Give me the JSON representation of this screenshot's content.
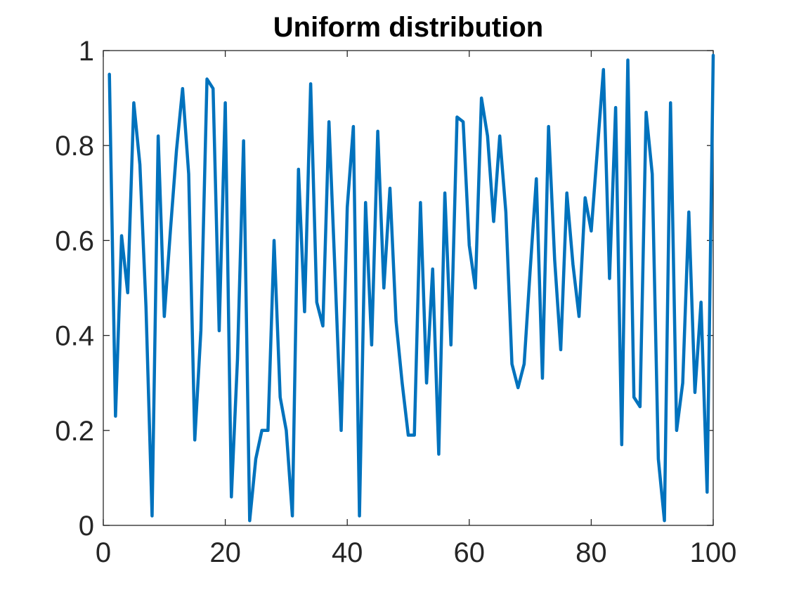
{
  "chart_data": {
    "type": "line",
    "title": "Uniform distribution",
    "xlabel": "",
    "ylabel": "",
    "xlim": [
      0,
      100
    ],
    "ylim": [
      0,
      1
    ],
    "xticks": [
      0,
      20,
      40,
      60,
      80,
      100
    ],
    "yticks": [
      0,
      0.2,
      0.4,
      0.6,
      0.8,
      1
    ],
    "xtick_labels": [
      "0",
      "20",
      "40",
      "60",
      "80",
      "100"
    ],
    "ytick_labels": [
      "0",
      "0.2",
      "0.4",
      "0.6",
      "0.8",
      "1"
    ],
    "grid": false,
    "box": true,
    "series": [
      {
        "color": "#0072bd",
        "x": [
          1,
          2,
          3,
          4,
          5,
          6,
          7,
          8,
          9,
          10,
          11,
          12,
          13,
          14,
          15,
          16,
          17,
          18,
          19,
          20,
          21,
          22,
          23,
          24,
          25,
          26,
          27,
          28,
          29,
          30,
          31,
          32,
          33,
          34,
          35,
          36,
          37,
          38,
          39,
          40,
          41,
          42,
          43,
          44,
          45,
          46,
          47,
          48,
          49,
          50,
          51,
          52,
          53,
          54,
          55,
          56,
          57,
          58,
          59,
          60,
          61,
          62,
          63,
          64,
          65,
          66,
          67,
          68,
          69,
          70,
          71,
          72,
          73,
          74,
          75,
          76,
          77,
          78,
          79,
          80,
          81,
          82,
          83,
          84,
          85,
          86,
          87,
          88,
          89,
          90,
          91,
          92,
          93,
          94,
          95,
          96,
          97,
          98,
          99,
          100
        ],
        "values": [
          0.95,
          0.23,
          0.61,
          0.49,
          0.89,
          0.76,
          0.46,
          0.02,
          0.82,
          0.44,
          0.62,
          0.79,
          0.92,
          0.74,
          0.18,
          0.41,
          0.94,
          0.92,
          0.41,
          0.89,
          0.06,
          0.35,
          0.81,
          0.01,
          0.14,
          0.2,
          0.2,
          0.6,
          0.27,
          0.2,
          0.02,
          0.75,
          0.45,
          0.93,
          0.47,
          0.42,
          0.85,
          0.53,
          0.2,
          0.67,
          0.84,
          0.02,
          0.68,
          0.38,
          0.83,
          0.5,
          0.71,
          0.43,
          0.3,
          0.19,
          0.19,
          0.68,
          0.3,
          0.54,
          0.15,
          0.7,
          0.38,
          0.86,
          0.85,
          0.59,
          0.5,
          0.9,
          0.82,
          0.64,
          0.82,
          0.66,
          0.34,
          0.29,
          0.34,
          0.54,
          0.73,
          0.31,
          0.84,
          0.56,
          0.37,
          0.7,
          0.55,
          0.44,
          0.69,
          0.62,
          0.79,
          0.96,
          0.52,
          0.88,
          0.17,
          0.98,
          0.27,
          0.25,
          0.87,
          0.74,
          0.14,
          0.01,
          0.89,
          0.2,
          0.3,
          0.66,
          0.28,
          0.47,
          0.07,
          0.99
        ]
      }
    ]
  }
}
